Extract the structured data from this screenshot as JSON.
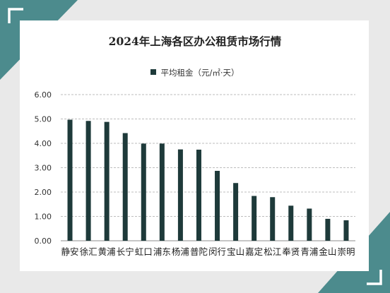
{
  "chart_data": {
    "type": "bar",
    "title": "2024年上海各区办公租赁市场行情",
    "legend": [
      "平均租金（元/㎡·天）"
    ],
    "legend_position": "top",
    "grid": true,
    "ylim": [
      0,
      6
    ],
    "yticks": [
      "0.00",
      "1.00",
      "2.00",
      "3.00",
      "4.00",
      "5.00",
      "6.00"
    ],
    "categories": [
      "静安",
      "徐汇",
      "黄浦",
      "长宁",
      "虹口",
      "浦东",
      "杨浦",
      "普陀",
      "闵行",
      "宝山",
      "嘉定",
      "松江",
      "奉贤",
      "青浦",
      "金山",
      "崇明"
    ],
    "series": [
      {
        "name": "平均租金（元/㎡·天）",
        "values": [
          4.97,
          4.92,
          4.88,
          4.42,
          3.99,
          3.99,
          3.75,
          3.74,
          2.87,
          2.37,
          1.84,
          1.79,
          1.44,
          1.32,
          0.9,
          0.84
        ]
      }
    ],
    "colors": {
      "bar": "#1e3a3a",
      "grid": "#bdbdbd",
      "frame": "#4c8b8d"
    }
  }
}
